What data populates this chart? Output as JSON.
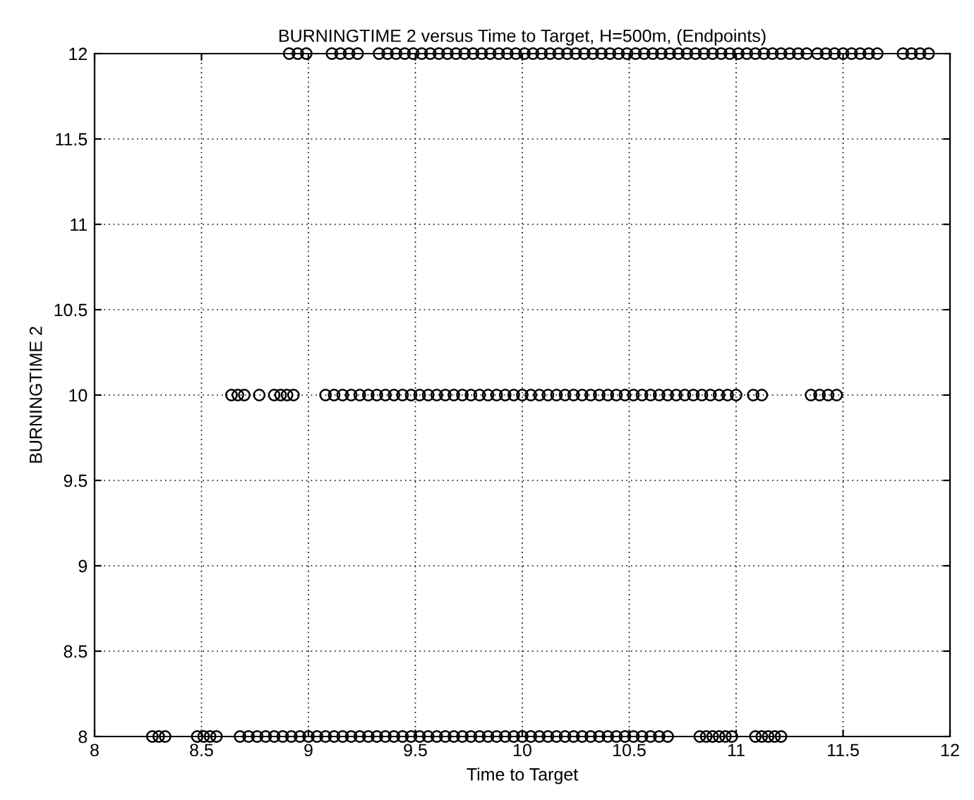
{
  "chart_data": {
    "type": "scatter",
    "title": "BURNINGTIME 2 versus Time to Target, H=500m, (Endpoints)",
    "xlabel": "Time to Target",
    "ylabel": "BURNINGTIME 2",
    "xlim": [
      8,
      12
    ],
    "ylim": [
      8,
      12
    ],
    "xticks": [
      8,
      8.5,
      9,
      9.5,
      10,
      10.5,
      11,
      11.5,
      12
    ],
    "yticks": [
      8,
      8.5,
      9,
      9.5,
      10,
      10.5,
      11,
      11.5,
      12
    ],
    "grid": true,
    "marker": "circle",
    "series": [
      {
        "color": "#000000",
        "x": [
          8.27,
          8.3,
          8.33,
          8.48,
          8.51,
          8.54,
          8.57,
          8.68,
          8.72,
          8.76,
          8.8,
          8.84,
          8.88,
          8.92,
          8.96,
          9.0,
          9.04,
          9.08,
          9.12,
          9.16,
          9.2,
          9.24,
          9.28,
          9.32,
          9.36,
          9.4,
          9.44,
          9.48,
          9.52,
          9.56,
          9.6,
          9.64,
          9.68,
          9.72,
          9.76,
          9.8,
          9.84,
          9.88,
          9.92,
          9.96,
          10.0,
          10.04,
          10.08,
          10.12,
          10.16,
          10.2,
          10.24,
          10.28,
          10.32,
          10.36,
          10.4,
          10.44,
          10.48,
          10.52,
          10.56,
          10.6,
          10.64,
          10.68,
          10.83,
          10.86,
          10.89,
          10.92,
          10.95,
          10.98,
          11.09,
          11.12,
          11.15,
          11.18,
          11.21
        ],
        "values": [
          8,
          8,
          8,
          8,
          8,
          8,
          8,
          8,
          8,
          8,
          8,
          8,
          8,
          8,
          8,
          8,
          8,
          8,
          8,
          8,
          8,
          8,
          8,
          8,
          8,
          8,
          8,
          8,
          8,
          8,
          8,
          8,
          8,
          8,
          8,
          8,
          8,
          8,
          8,
          8,
          8,
          8,
          8,
          8,
          8,
          8,
          8,
          8,
          8,
          8,
          8,
          8,
          8,
          8,
          8,
          8,
          8,
          8,
          8,
          8,
          8,
          8,
          8,
          8,
          8,
          8,
          8,
          8,
          8
        ]
      },
      {
        "color": "#000000",
        "x": [
          8.64,
          8.67,
          8.7,
          8.77,
          8.84,
          8.87,
          8.9,
          8.93,
          9.08,
          9.12,
          9.16,
          9.2,
          9.24,
          9.28,
          9.32,
          9.36,
          9.4,
          9.44,
          9.48,
          9.52,
          9.56,
          9.6,
          9.64,
          9.68,
          9.72,
          9.76,
          9.8,
          9.84,
          9.88,
          9.92,
          9.96,
          10.0,
          10.04,
          10.08,
          10.12,
          10.16,
          10.2,
          10.24,
          10.28,
          10.32,
          10.36,
          10.4,
          10.44,
          10.48,
          10.52,
          10.56,
          10.6,
          10.64,
          10.68,
          10.72,
          10.76,
          10.8,
          10.84,
          10.88,
          10.92,
          10.96,
          11.0,
          11.08,
          11.12,
          11.35,
          11.39,
          11.43,
          11.47
        ],
        "values": [
          10,
          10,
          10,
          10,
          10,
          10,
          10,
          10,
          10,
          10,
          10,
          10,
          10,
          10,
          10,
          10,
          10,
          10,
          10,
          10,
          10,
          10,
          10,
          10,
          10,
          10,
          10,
          10,
          10,
          10,
          10,
          10,
          10,
          10,
          10,
          10,
          10,
          10,
          10,
          10,
          10,
          10,
          10,
          10,
          10,
          10,
          10,
          10,
          10,
          10,
          10,
          10,
          10,
          10,
          10,
          10,
          10,
          10,
          10,
          10,
          10,
          10,
          10
        ]
      },
      {
        "color": "#000000",
        "x": [
          8.91,
          8.95,
          8.99,
          9.11,
          9.15,
          9.19,
          9.23,
          9.33,
          9.37,
          9.41,
          9.45,
          9.49,
          9.53,
          9.57,
          9.61,
          9.65,
          9.69,
          9.73,
          9.77,
          9.81,
          9.85,
          9.89,
          9.93,
          9.97,
          10.01,
          10.05,
          10.09,
          10.13,
          10.17,
          10.21,
          10.25,
          10.29,
          10.33,
          10.37,
          10.41,
          10.45,
          10.49,
          10.53,
          10.57,
          10.61,
          10.65,
          10.69,
          10.73,
          10.77,
          10.81,
          10.85,
          10.89,
          10.93,
          10.97,
          11.01,
          11.05,
          11.09,
          11.13,
          11.17,
          11.21,
          11.25,
          11.29,
          11.33,
          11.38,
          11.42,
          11.46,
          11.5,
          11.54,
          11.58,
          11.62,
          11.66,
          11.78,
          11.82,
          11.86,
          11.9
        ],
        "values": [
          12,
          12,
          12,
          12,
          12,
          12,
          12,
          12,
          12,
          12,
          12,
          12,
          12,
          12,
          12,
          12,
          12,
          12,
          12,
          12,
          12,
          12,
          12,
          12,
          12,
          12,
          12,
          12,
          12,
          12,
          12,
          12,
          12,
          12,
          12,
          12,
          12,
          12,
          12,
          12,
          12,
          12,
          12,
          12,
          12,
          12,
          12,
          12,
          12,
          12,
          12,
          12,
          12,
          12,
          12,
          12,
          12,
          12,
          12,
          12,
          12,
          12,
          12,
          12,
          12,
          12,
          12,
          12,
          12,
          12
        ]
      }
    ]
  }
}
